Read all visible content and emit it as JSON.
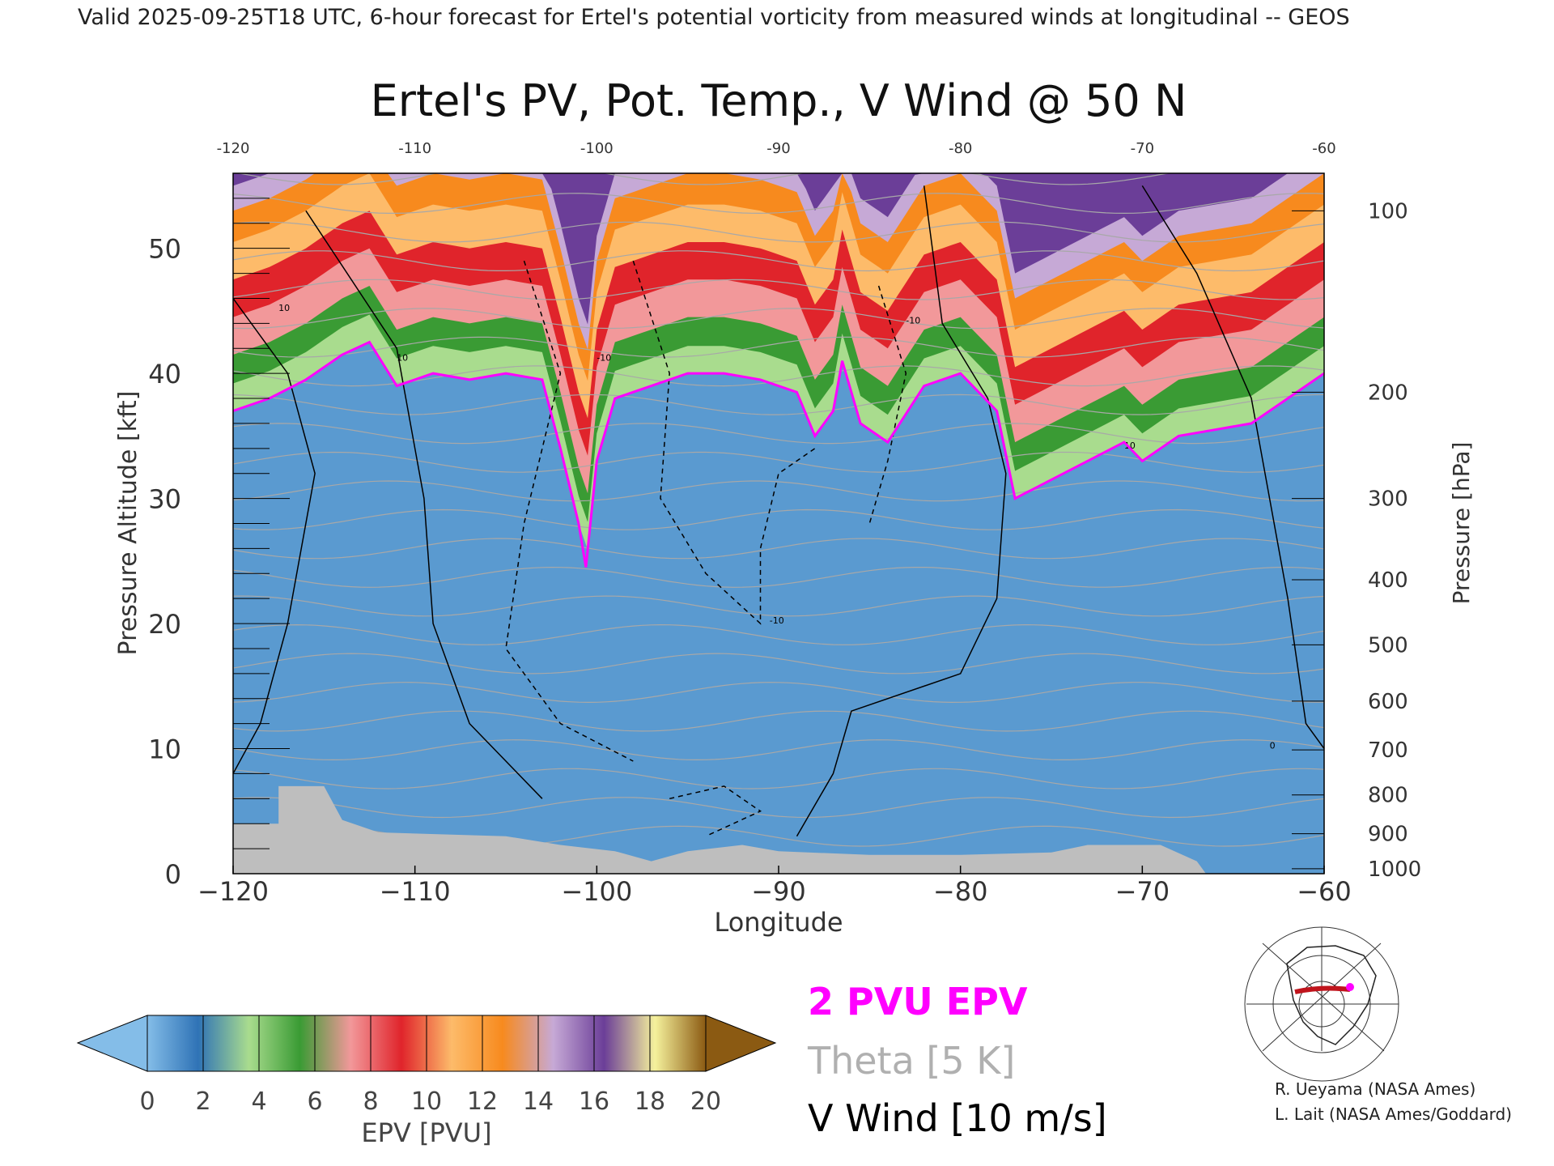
{
  "header": {
    "valid_line": "Valid 2025-09-25T18 UTC, 6-hour forecast for Ertel's potential vorticity from measured winds at longitudinal -- GEOS"
  },
  "chart_data": {
    "type": "heatmap",
    "title": "Ertel's PV, Pot. Temp., V Wind @ 50 N",
    "xlabel": "Longitude",
    "ylabel": "Pressure Altitude [kft]",
    "y2label": "Pressure [hPa]",
    "xlim": [
      -120,
      -60
    ],
    "ylim": [
      0,
      56
    ],
    "x_ticks": [
      -120,
      -110,
      -100,
      -90,
      -80,
      -70,
      -60
    ],
    "x_tick_labels": [
      "−120",
      "−110",
      "−100",
      "−90",
      "−80",
      "−70",
      "−60"
    ],
    "x_top_tick_labels": [
      "-120",
      "-110",
      "-100",
      "-90",
      "-80",
      "-70",
      "-60"
    ],
    "y_ticks": [
      0,
      10,
      20,
      30,
      40,
      50
    ],
    "pressure_ticks": [
      {
        "label": "100",
        "kft": 53
      },
      {
        "label": "200",
        "kft": 38.5
      },
      {
        "label": "300",
        "kft": 30
      },
      {
        "label": "400",
        "kft": 23.5
      },
      {
        "label": "500",
        "kft": 18.3
      },
      {
        "label": "600",
        "kft": 13.8
      },
      {
        "label": "700",
        "kft": 9.9
      },
      {
        "label": "800",
        "kft": 6.3
      },
      {
        "label": "900",
        "kft": 3.2
      },
      {
        "label": "1000",
        "kft": 0.4
      }
    ],
    "tropopause_2pvu_kft": [
      [
        -120,
        37
      ],
      [
        -118,
        38
      ],
      [
        -116,
        39.5
      ],
      [
        -114,
        41.5
      ],
      [
        -112.5,
        42.5
      ],
      [
        -111,
        39
      ],
      [
        -109,
        40
      ],
      [
        -107,
        39.5
      ],
      [
        -105,
        40
      ],
      [
        -103,
        39.5
      ],
      [
        -102,
        34
      ],
      [
        -101,
        28
      ],
      [
        -100.6,
        24.5
      ],
      [
        -100,
        33
      ],
      [
        -99,
        38
      ],
      [
        -97,
        39
      ],
      [
        -95,
        40
      ],
      [
        -93,
        40
      ],
      [
        -91,
        39.5
      ],
      [
        -89,
        38.5
      ],
      [
        -88,
        35
      ],
      [
        -87,
        37
      ],
      [
        -86.5,
        41
      ],
      [
        -85.5,
        36
      ],
      [
        -84,
        34.5
      ],
      [
        -82,
        39
      ],
      [
        -80,
        40
      ],
      [
        -78,
        37
      ],
      [
        -77,
        30
      ],
      [
        -75,
        31.5
      ],
      [
        -73,
        33
      ],
      [
        -71,
        34.5
      ],
      [
        -70,
        33
      ],
      [
        -68,
        35
      ],
      [
        -66,
        35.5
      ],
      [
        -64,
        36
      ],
      [
        -62,
        38
      ],
      [
        -60,
        40
      ]
    ],
    "surface_kft": [
      [
        -120,
        4
      ],
      [
        -117.5,
        4
      ],
      [
        -117.5,
        7
      ],
      [
        -115,
        7
      ],
      [
        -114,
        4.3
      ],
      [
        -112,
        3.3
      ],
      [
        -105,
        3
      ],
      [
        -102,
        2.3
      ],
      [
        -99,
        1.8
      ],
      [
        -97,
        1
      ],
      [
        -95,
        1.8
      ],
      [
        -92,
        2.3
      ],
      [
        -90,
        1.8
      ],
      [
        -85,
        1.5
      ],
      [
        -80,
        1.5
      ],
      [
        -75,
        1.7
      ],
      [
        -73,
        2.3
      ],
      [
        -69,
        2.3
      ],
      [
        -67,
        1
      ],
      [
        -66.5,
        0
      ],
      [
        -60,
        0
      ]
    ],
    "colorbar": {
      "label": "EPV [PVU]",
      "ticks": [
        "0",
        "2",
        "4",
        "6",
        "8",
        "10",
        "12",
        "14",
        "16",
        "18",
        "20"
      ],
      "colors": [
        "#84bde8",
        "#2f73b6",
        "#a9dc8e",
        "#3a9b34",
        "#f2989a",
        "#e0242b",
        "#fdbb6a",
        "#f78a1e",
        "#c6a9d6",
        "#6b3e98",
        "#f5f19c",
        "#8b5a12"
      ]
    },
    "legend": {
      "epv_2pvu": "2 PVU EPV",
      "theta": "Theta [5 K]",
      "vwind": "V Wind [10 m/s]",
      "epv_color": "#ff00ff",
      "theta_color": "#b0b0b0",
      "vwind_color": "#000000"
    },
    "credits": [
      "R. Ueyama (NASA Ames)",
      "L. Lait (NASA Ames/Goddard)"
    ],
    "vwind_contour_labels": [
      "10",
      "-10",
      "0"
    ]
  }
}
